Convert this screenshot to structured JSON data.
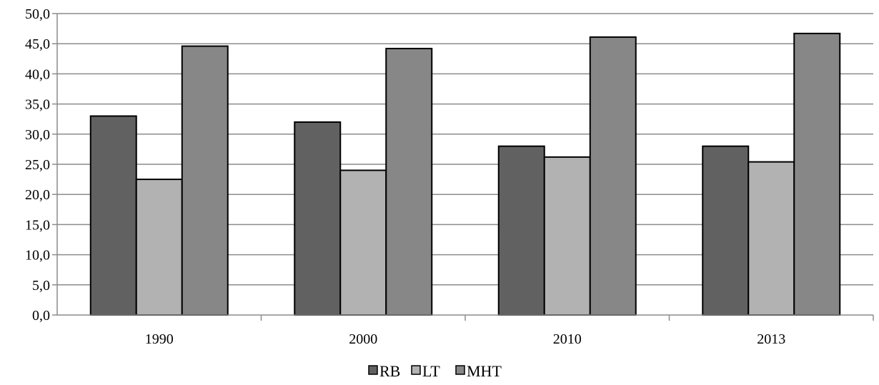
{
  "chart_data": {
    "type": "bar",
    "title": "",
    "xlabel": "",
    "ylabel": "",
    "categories": [
      "1990",
      "2000",
      "2010",
      "2013"
    ],
    "series": [
      {
        "name": "RB",
        "values": [
          33.0,
          32.0,
          28.0,
          28.0
        ],
        "color": "#616161"
      },
      {
        "name": "LT",
        "values": [
          22.5,
          24.0,
          26.2,
          25.4
        ],
        "color": "#b2b2b2"
      },
      {
        "name": "MHT",
        "values": [
          44.6,
          44.2,
          46.1,
          46.7
        ],
        "color": "#878787"
      }
    ],
    "ylim": [
      0,
      50
    ],
    "ytick_step": 5,
    "ytick_labels": [
      "0,0",
      "5,0",
      "10,0",
      "15,0",
      "20,0",
      "25,0",
      "30,0",
      "35,0",
      "40,0",
      "45,0",
      "50,0"
    ],
    "grid": true,
    "legend": "bottom-center"
  }
}
